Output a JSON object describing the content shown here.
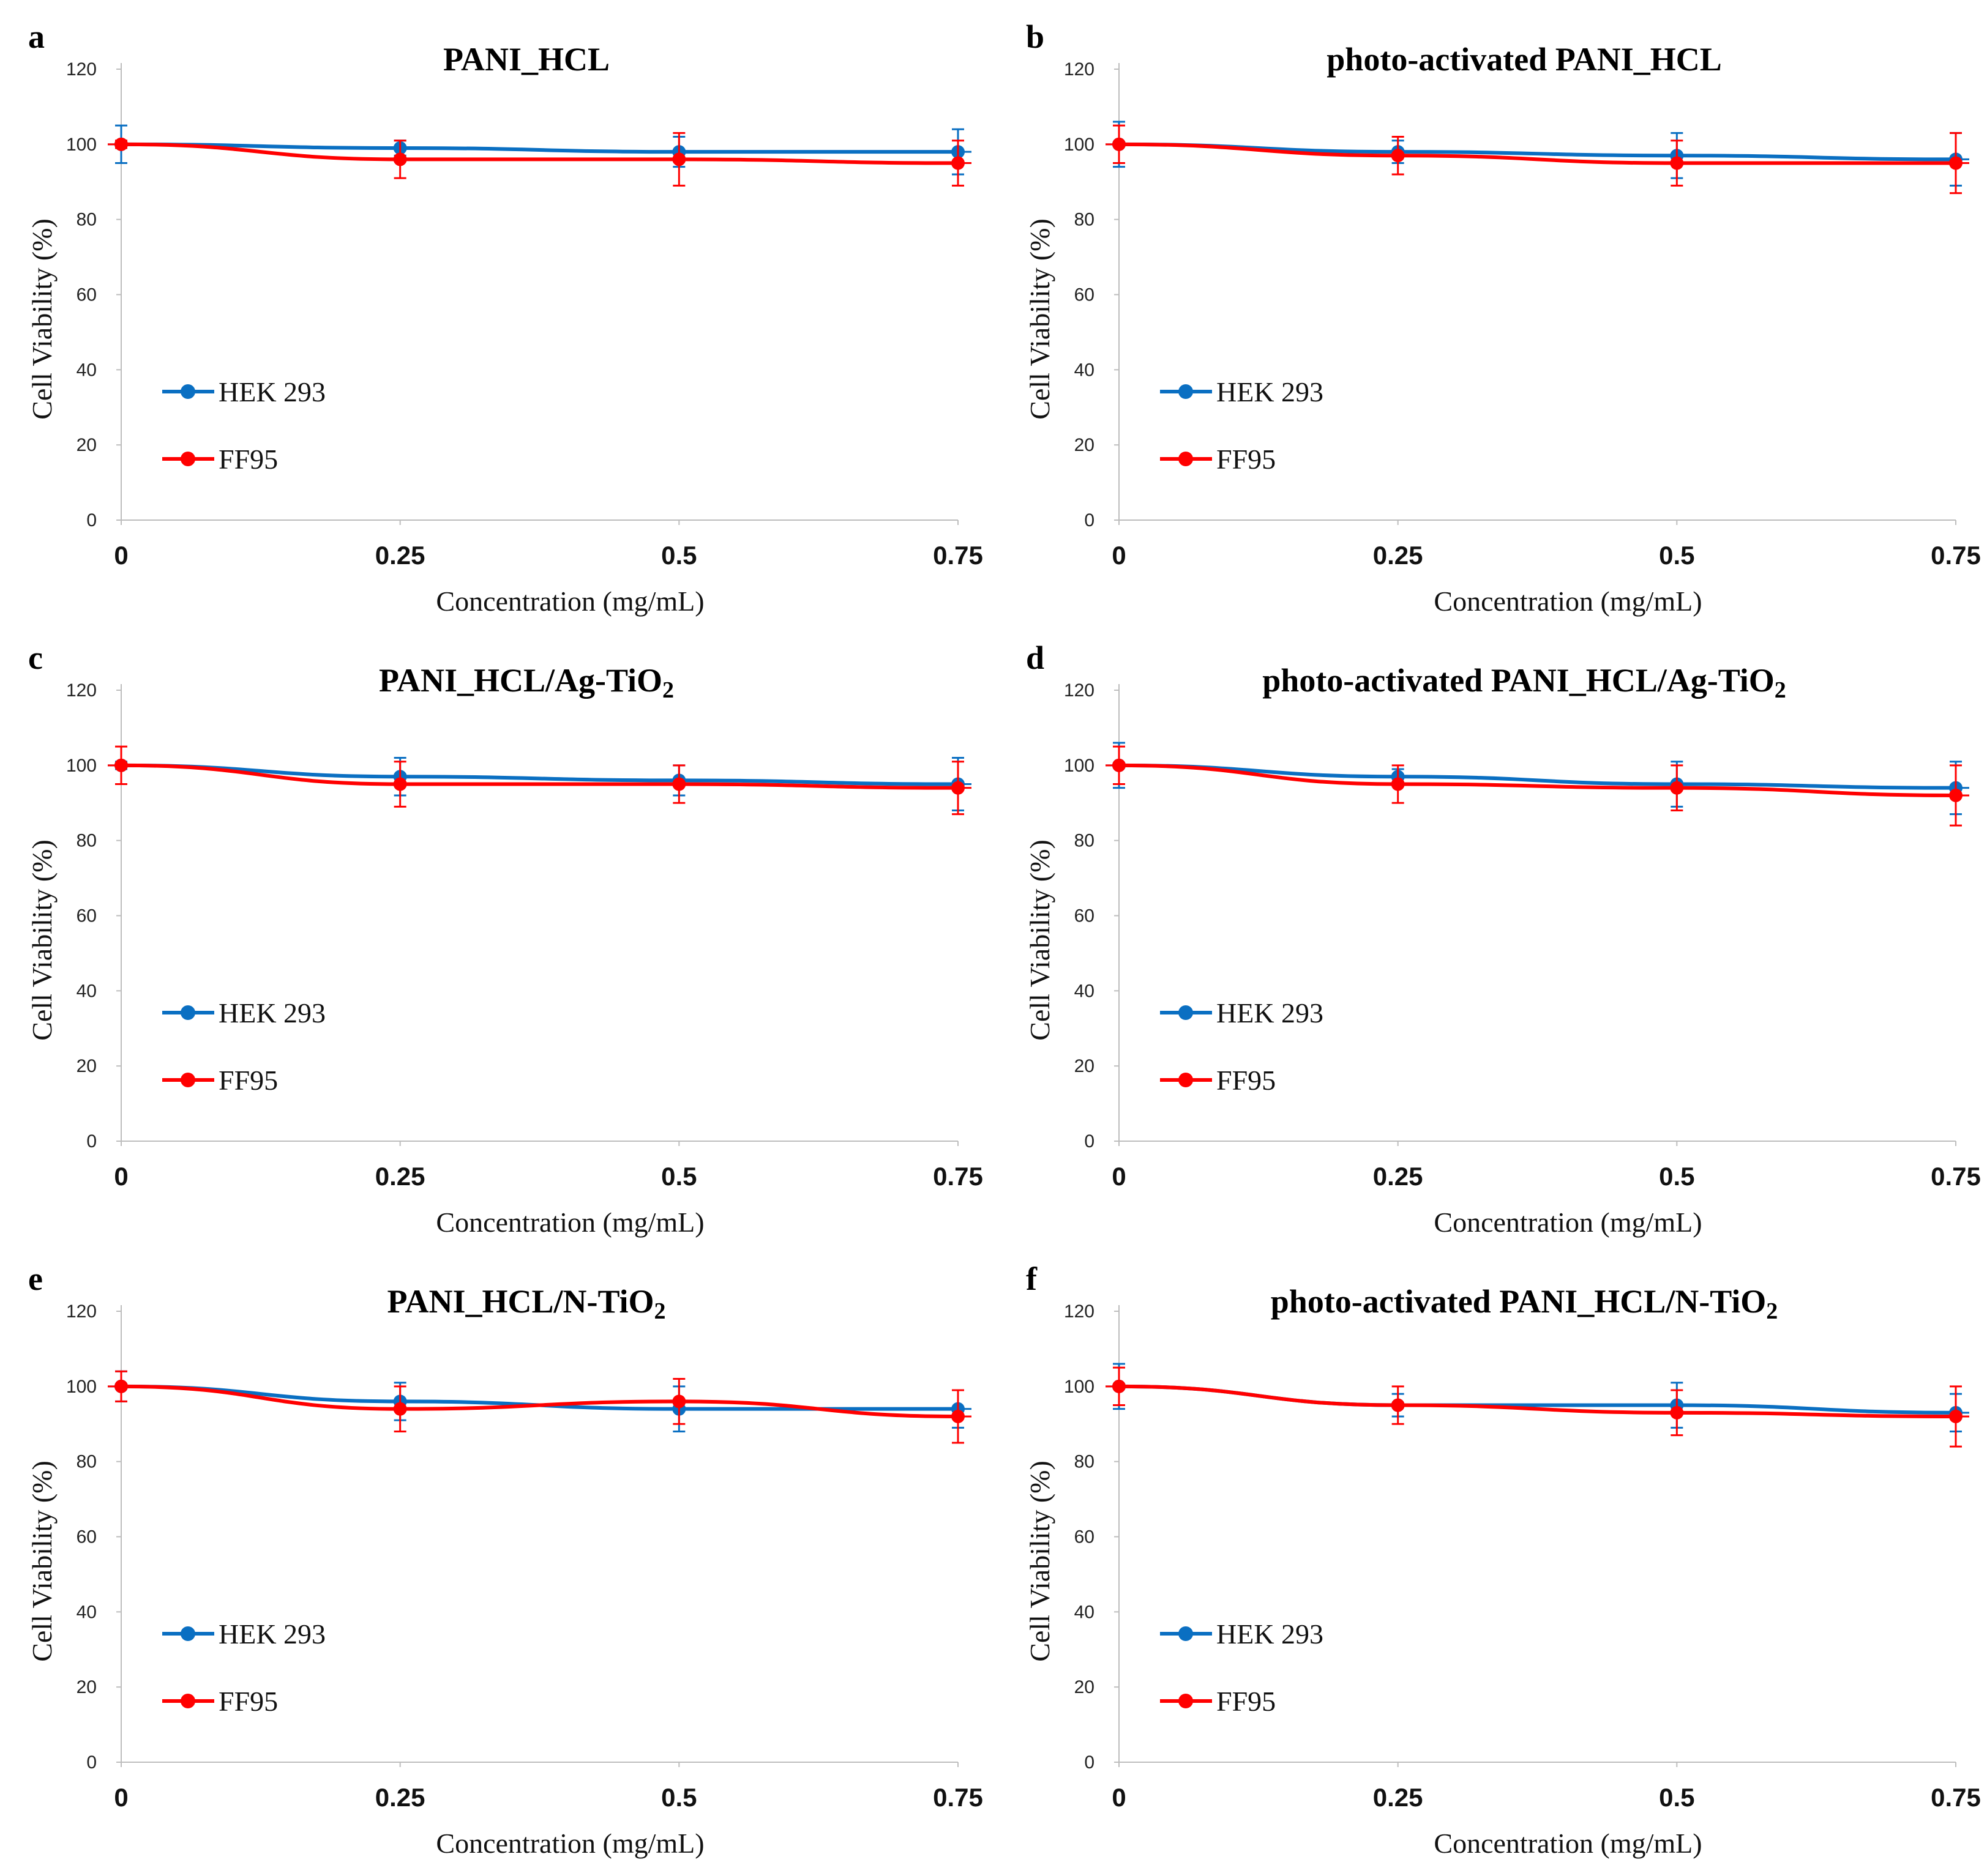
{
  "chart_data": [
    {
      "panel": "a",
      "title": "PANI_HCL",
      "title_sub": "",
      "type": "line",
      "xlabel": "Concentration (mg/mL)",
      "ylabel": "Cell Viability (%)",
      "x": [
        0,
        0.25,
        0.5,
        0.75
      ],
      "x_tick_labels": [
        "0",
        "0.25",
        "0.5",
        "0.75"
      ],
      "ylim": [
        0,
        120
      ],
      "y_ticks": [
        0,
        20,
        40,
        60,
        80,
        100,
        120
      ],
      "series": [
        {
          "name": "HEK 293",
          "color": "#0a6fc2",
          "values": [
            100,
            99,
            98,
            98
          ],
          "errors": [
            5,
            2,
            4,
            6
          ]
        },
        {
          "name": "FF95",
          "color": "#ff0000",
          "values": [
            100,
            96,
            96,
            95
          ],
          "errors": [
            1,
            5,
            7,
            6
          ]
        }
      ]
    },
    {
      "panel": "b",
      "title": "photo-activated PANI_HCL",
      "title_sub": "",
      "type": "line",
      "xlabel": "Concentration (mg/mL)",
      "ylabel": "Cell Viability (%)",
      "x": [
        0,
        0.25,
        0.5,
        0.75
      ],
      "x_tick_labels": [
        "0",
        "0.25",
        "0.5",
        "0.75"
      ],
      "ylim": [
        0,
        120
      ],
      "y_ticks": [
        0,
        20,
        40,
        60,
        80,
        100,
        120
      ],
      "series": [
        {
          "name": "HEK 293",
          "color": "#0a6fc2",
          "values": [
            100,
            98,
            97,
            96
          ],
          "errors": [
            6,
            3,
            6,
            7
          ]
        },
        {
          "name": "FF95",
          "color": "#ff0000",
          "values": [
            100,
            97,
            95,
            95
          ],
          "errors": [
            5,
            5,
            6,
            8
          ]
        }
      ]
    },
    {
      "panel": "c",
      "title": "PANI_HCL/Ag-TiO",
      "title_sub": "2",
      "type": "line",
      "xlabel": "Concentration (mg/mL)",
      "ylabel": "Cell Viability (%)",
      "x": [
        0,
        0.25,
        0.5,
        0.75
      ],
      "x_tick_labels": [
        "0",
        "0.25",
        "0.5",
        "0.75"
      ],
      "ylim": [
        0,
        120
      ],
      "y_ticks": [
        0,
        20,
        40,
        60,
        80,
        100,
        120
      ],
      "series": [
        {
          "name": "HEK 293",
          "color": "#0a6fc2",
          "values": [
            100,
            97,
            96,
            95
          ],
          "errors": [
            1,
            5,
            4,
            7
          ]
        },
        {
          "name": "FF95",
          "color": "#ff0000",
          "values": [
            100,
            95,
            95,
            94
          ],
          "errors": [
            5,
            6,
            5,
            7
          ]
        }
      ]
    },
    {
      "panel": "d",
      "title": "photo-activated PANI_HCL/Ag-TiO",
      "title_sub": "2",
      "type": "line",
      "xlabel": "Concentration (mg/mL)",
      "ylabel": "Cell Viability (%)",
      "x": [
        0,
        0.25,
        0.5,
        0.75
      ],
      "x_tick_labels": [
        "0",
        "0.25",
        "0.5",
        "0.75"
      ],
      "ylim": [
        0,
        120
      ],
      "y_ticks": [
        0,
        20,
        40,
        60,
        80,
        100,
        120
      ],
      "series": [
        {
          "name": "HEK 293",
          "color": "#0a6fc2",
          "values": [
            100,
            97,
            95,
            94
          ],
          "errors": [
            6,
            2,
            6,
            7
          ]
        },
        {
          "name": "FF95",
          "color": "#ff0000",
          "values": [
            100,
            95,
            94,
            92
          ],
          "errors": [
            5,
            5,
            6,
            8
          ]
        }
      ]
    },
    {
      "panel": "e",
      "title": "PANI_HCL/N-TiO",
      "title_sub": "2",
      "type": "line",
      "xlabel": "Concentration (mg/mL)",
      "ylabel": "Cell Viability (%)",
      "x": [
        0,
        0.25,
        0.5,
        0.75
      ],
      "x_tick_labels": [
        "0",
        "0.25",
        "0.5",
        "0.75"
      ],
      "ylim": [
        0,
        120
      ],
      "y_ticks": [
        0,
        20,
        40,
        60,
        80,
        100,
        120
      ],
      "series": [
        {
          "name": "HEK 293",
          "color": "#0a6fc2",
          "values": [
            100,
            96,
            94,
            94
          ],
          "errors": [
            4,
            5,
            6,
            5
          ]
        },
        {
          "name": "FF95",
          "color": "#ff0000",
          "values": [
            100,
            94,
            96,
            92
          ],
          "errors": [
            4,
            6,
            6,
            7
          ]
        }
      ]
    },
    {
      "panel": "f",
      "title": "photo-activated PANI_HCL/N-TiO",
      "title_sub": "2",
      "type": "line",
      "xlabel": "Concentration (mg/mL)",
      "ylabel": "Cell Viability (%)",
      "x": [
        0,
        0.25,
        0.5,
        0.75
      ],
      "x_tick_labels": [
        "0",
        "0.25",
        "0.5",
        "0.75"
      ],
      "ylim": [
        0,
        120
      ],
      "y_ticks": [
        0,
        20,
        40,
        60,
        80,
        100,
        120
      ],
      "series": [
        {
          "name": "HEK 293",
          "color": "#0a6fc2",
          "values": [
            100,
            95,
            95,
            93
          ],
          "errors": [
            6,
            3,
            6,
            5
          ]
        },
        {
          "name": "FF95",
          "color": "#ff0000",
          "values": [
            100,
            95,
            93,
            92
          ],
          "errors": [
            5,
            5,
            6,
            8
          ]
        }
      ]
    }
  ]
}
